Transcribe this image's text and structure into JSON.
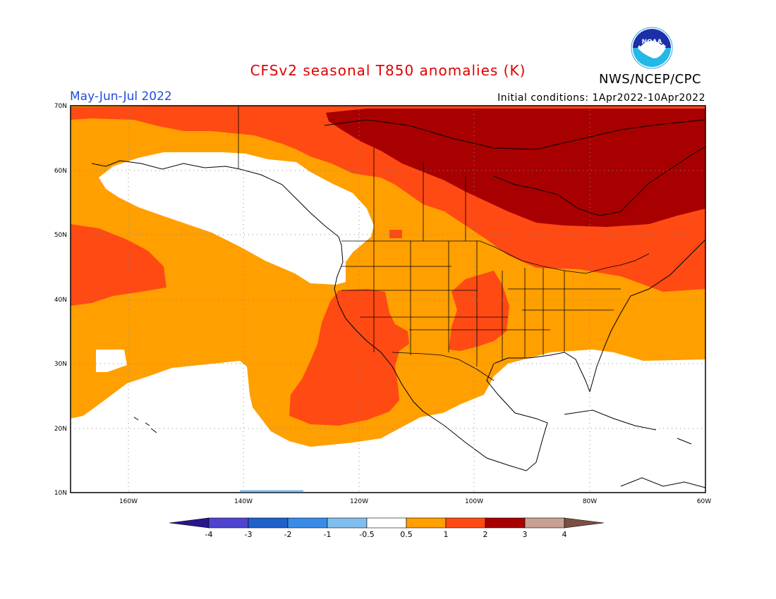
{
  "title": "CFSv2 seasonal T850 anomalies (K)",
  "season": "May-Jun-Jul 2022",
  "initial_conditions": "Initial conditions: 1Apr2022-10Apr2022",
  "agency": "NWS/NCEP/CPC",
  "logo": {
    "icon": "noaa-logo",
    "text": "NOAA"
  },
  "map": {
    "projection": "lat-lon",
    "lon_range": [
      -172,
      -60
    ],
    "lat_range": [
      10,
      70
    ],
    "lon_ticks": [
      "160W",
      "140W",
      "120W",
      "100W",
      "80W",
      "60W"
    ],
    "lat_ticks": [
      "10N",
      "20N",
      "30N",
      "40N",
      "50N",
      "60N",
      "70N"
    ],
    "gridlines": "dotted"
  },
  "colorbar": {
    "ticks": [
      "-4",
      "-3",
      "-2",
      "-1",
      "-0.5",
      "0.5",
      "1",
      "2",
      "3",
      "4"
    ],
    "colors": [
      "#2a1590",
      "#4f44cf",
      "#1f60c9",
      "#3a8ae8",
      "#80bef0",
      "#ffffff",
      "#ff9f00",
      "#ff4a14",
      "#a80000",
      "#c8a194",
      "#7b4f45"
    ]
  }
}
